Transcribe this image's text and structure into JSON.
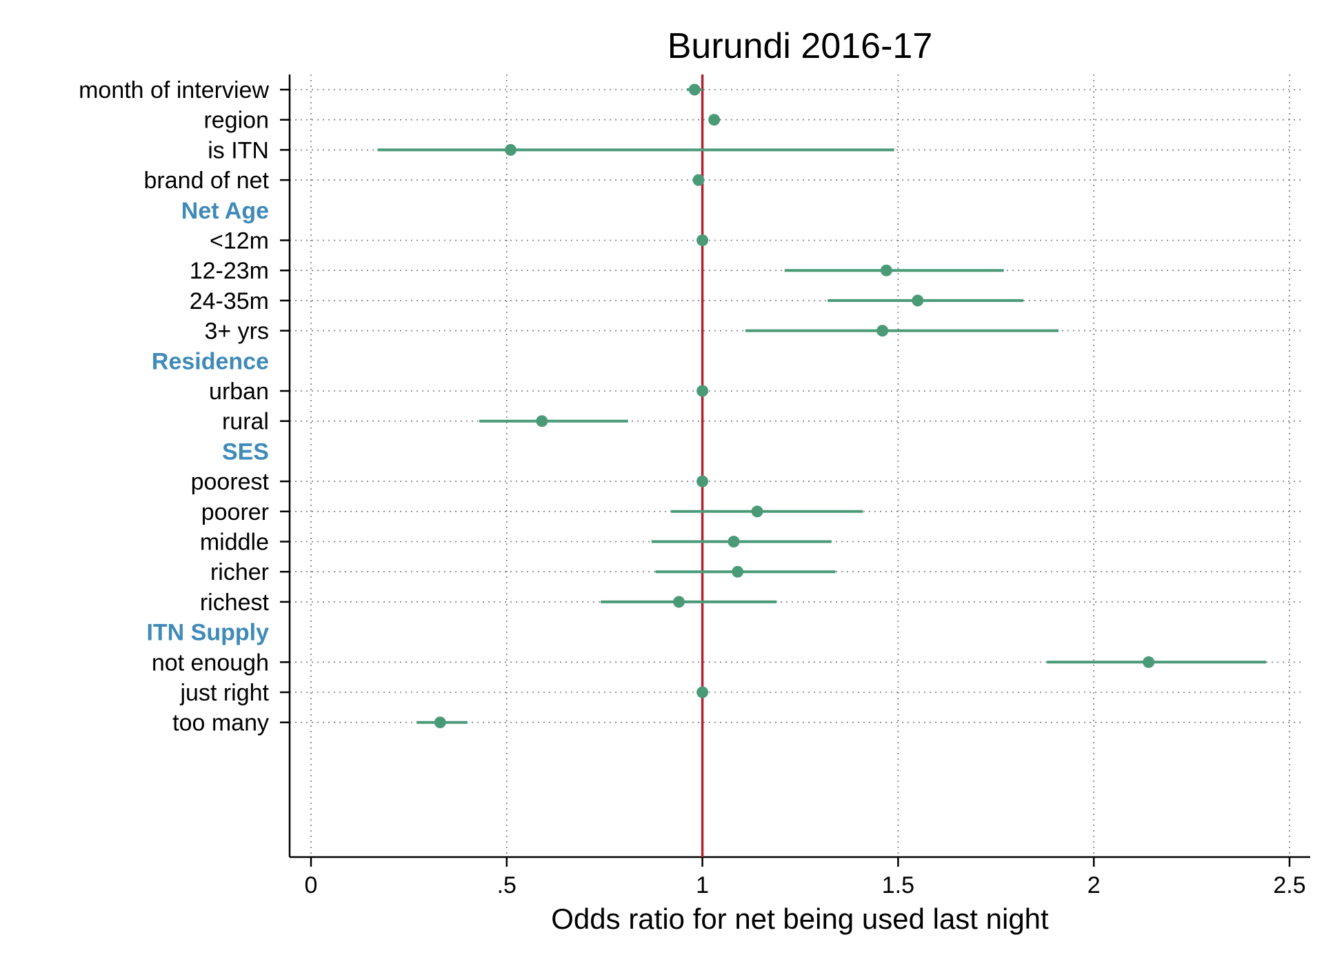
{
  "chart_data": {
    "type": "scatter",
    "title": "Burundi 2016-17",
    "xlabel": "Odds ratio for net being used last night",
    "xlim": [
      -0.05,
      2.55
    ],
    "xticks": [
      {
        "value": 0,
        "label": "0"
      },
      {
        "value": 0.5,
        "label": ".5"
      },
      {
        "value": 1,
        "label": "1"
      },
      {
        "value": 1.5,
        "label": "1.5"
      },
      {
        "value": 2,
        "label": "2"
      },
      {
        "value": 2.5,
        "label": "2.5"
      }
    ],
    "reference_line": 1,
    "grid": "dotted",
    "colors": {
      "point": "#4a9a78",
      "reference": "#b5202e",
      "group_header": "#3f8ab8",
      "text": "#000000"
    },
    "rows": [
      {
        "label": "month of interview",
        "kind": "item",
        "or": 0.98,
        "lo": 0.96,
        "hi": 1.0
      },
      {
        "label": "region",
        "kind": "item",
        "or": 1.03,
        "lo": 1.02,
        "hi": 1.04
      },
      {
        "label": "is ITN",
        "kind": "item",
        "or": 0.51,
        "lo": 0.17,
        "hi": 1.49
      },
      {
        "label": "brand of net",
        "kind": "item",
        "or": 0.99,
        "lo": 0.98,
        "hi": 1.0
      },
      {
        "label": "Net Age",
        "kind": "group"
      },
      {
        "label": "<12m",
        "kind": "item",
        "or": 1.0,
        "lo": 1.0,
        "hi": 1.0
      },
      {
        "label": "12-23m",
        "kind": "item",
        "or": 1.47,
        "lo": 1.21,
        "hi": 1.77
      },
      {
        "label": "24-35m",
        "kind": "item",
        "or": 1.55,
        "lo": 1.32,
        "hi": 1.82
      },
      {
        "label": "3+ yrs",
        "kind": "item",
        "or": 1.46,
        "lo": 1.11,
        "hi": 1.91
      },
      {
        "label": "Residence",
        "kind": "group"
      },
      {
        "label": "urban",
        "kind": "item",
        "or": 1.0,
        "lo": 1.0,
        "hi": 1.0
      },
      {
        "label": "rural",
        "kind": "item",
        "or": 0.59,
        "lo": 0.43,
        "hi": 0.81
      },
      {
        "label": "SES",
        "kind": "group"
      },
      {
        "label": "poorest",
        "kind": "item",
        "or": 1.0,
        "lo": 1.0,
        "hi": 1.0
      },
      {
        "label": "poorer",
        "kind": "item",
        "or": 1.14,
        "lo": 0.92,
        "hi": 1.41
      },
      {
        "label": "middle",
        "kind": "item",
        "or": 1.08,
        "lo": 0.87,
        "hi": 1.33
      },
      {
        "label": "richer",
        "kind": "item",
        "or": 1.09,
        "lo": 0.88,
        "hi": 1.34
      },
      {
        "label": "richest",
        "kind": "item",
        "or": 0.94,
        "lo": 0.74,
        "hi": 1.19
      },
      {
        "label": "ITN Supply",
        "kind": "group"
      },
      {
        "label": "not enough",
        "kind": "item",
        "or": 2.14,
        "lo": 1.88,
        "hi": 2.44
      },
      {
        "label": "just right",
        "kind": "item",
        "or": 1.0,
        "lo": 1.0,
        "hi": 1.0
      },
      {
        "label": "too many",
        "kind": "item",
        "or": 0.33,
        "lo": 0.27,
        "hi": 0.4
      }
    ]
  }
}
